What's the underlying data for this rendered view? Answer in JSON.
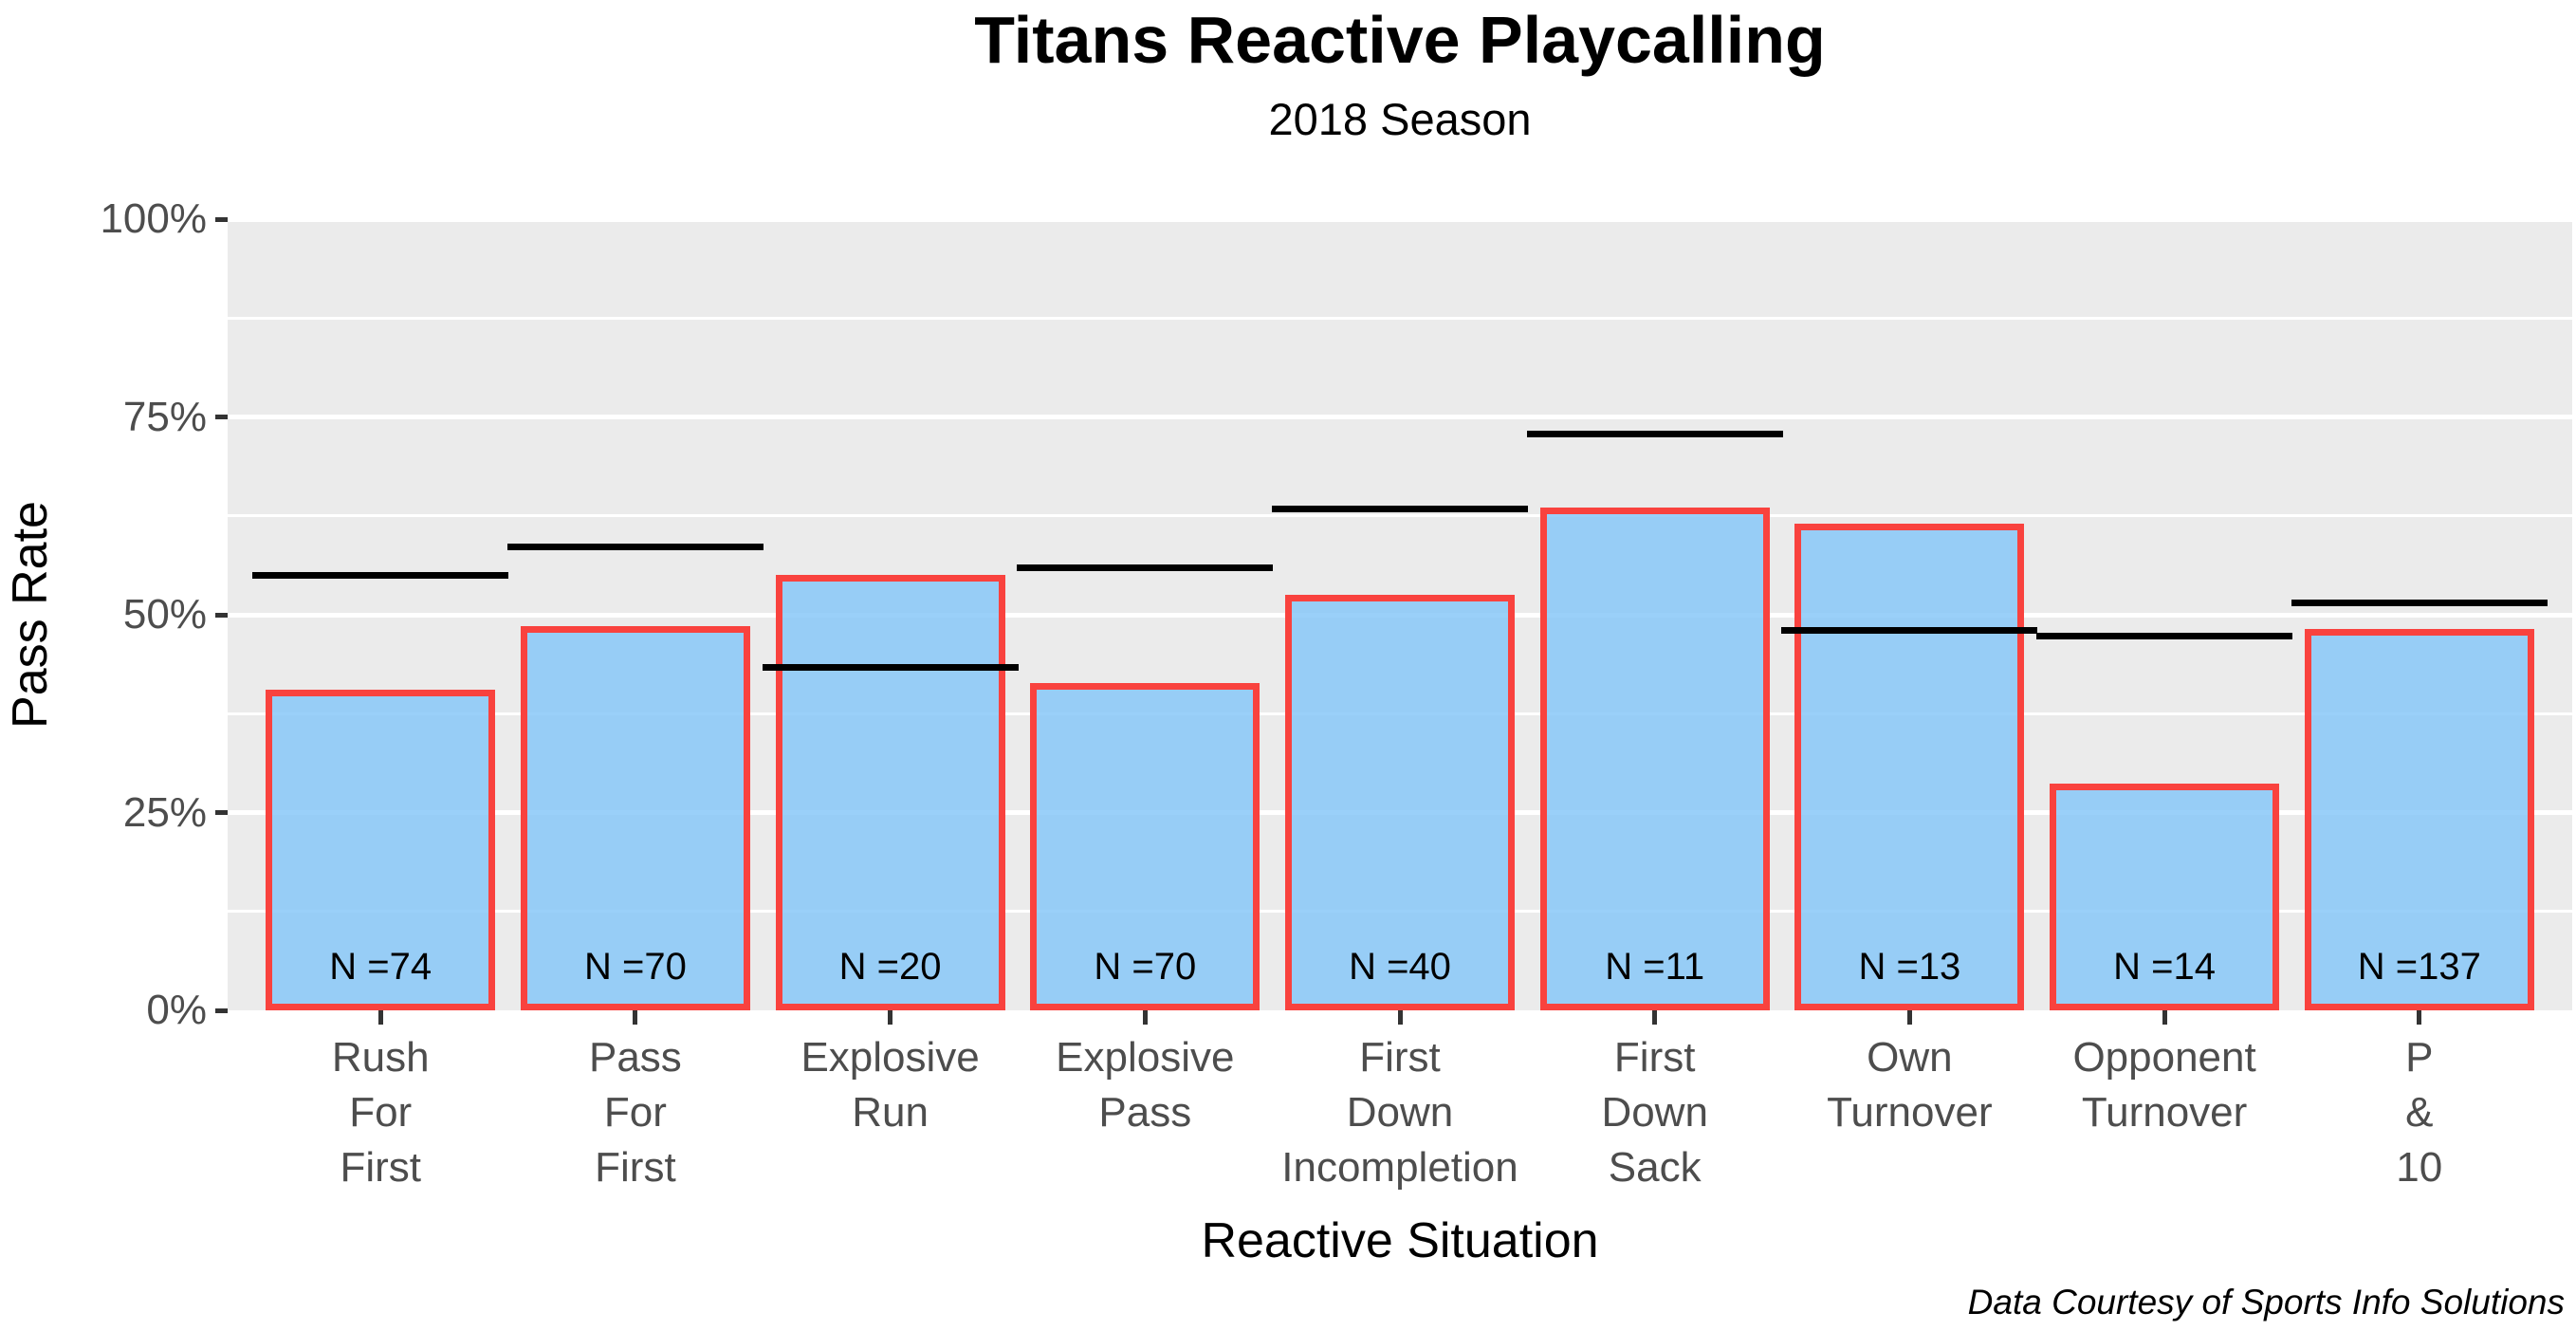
{
  "title": "Titans Reactive Playcalling",
  "subtitle": "2018 Season",
  "caption": "Data Courtesy of Sports Info Solutions",
  "colors": {
    "panel_background": "#EBEBEB",
    "gridline": "#FFFFFF",
    "bar_fill": "rgba(136,200,248,0.85)",
    "bar_border": "#F9423E",
    "reference_line": "#000000",
    "tick_label": "#4D4D4D",
    "tick_mark": "#333333"
  },
  "y_axis": {
    "title": "Pass Rate",
    "tick_labels": [
      "0%",
      "25%",
      "50%",
      "75%",
      "100%"
    ],
    "tick_values": [
      0,
      25,
      50,
      75,
      100
    ],
    "minor_tick_values": [
      12.5,
      37.5,
      62.5,
      87.5
    ]
  },
  "x_axis": {
    "title": "Reactive Situation"
  },
  "chart_data": {
    "type": "bar",
    "title": "Titans Reactive Playcalling",
    "subtitle": "2018 Season",
    "xlabel": "Reactive Situation",
    "ylabel": "Pass Rate",
    "ylim": [
      0,
      100
    ],
    "grid": true,
    "categories": [
      "Rush\nFor\nFirst",
      "Pass\nFor\nFirst",
      "Explosive\nRun",
      "Explosive\nPass",
      "First\nDown\nIncompletion",
      "First\nDown\nSack",
      "Own\nTurnover",
      "Opponent\nTurnover",
      "P\n&\n10"
    ],
    "series": [
      {
        "name": "Titans pass rate (blue bars, %)",
        "values": [
          40.5,
          48.6,
          55.0,
          41.4,
          52.5,
          63.6,
          61.5,
          28.6,
          48.2
        ]
      },
      {
        "name": "Reference pass rate (black lines, %)",
        "values": [
          55.0,
          58.6,
          43.4,
          55.9,
          63.4,
          72.9,
          48.0,
          47.3,
          51.5
        ]
      }
    ],
    "bar_labels": [
      "N =74",
      "N =70",
      "N =20",
      "N =70",
      "N =40",
      "N =11",
      "N =13",
      "N =14",
      "N =137"
    ]
  }
}
